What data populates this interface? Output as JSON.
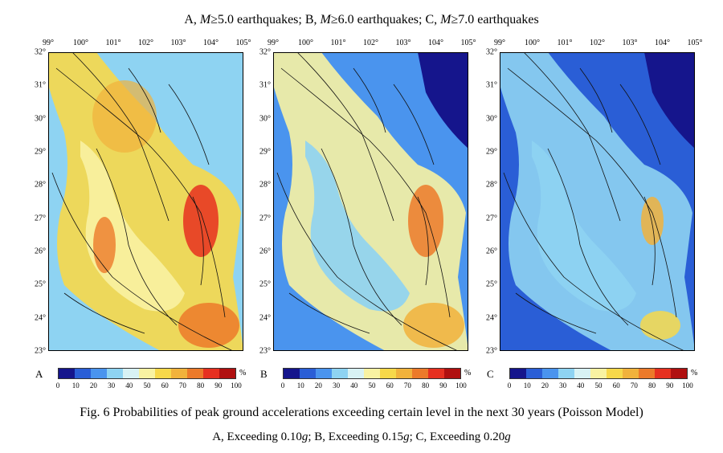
{
  "header": {
    "a_text": "A, ",
    "a_m": "M",
    "a_rest": "≥5.0 earthquakes; B, ",
    "b_m": "M",
    "b_rest": "≥6.0 earthquakes; C, ",
    "c_m": "M",
    "c_rest": "≥7.0 earthquakes"
  },
  "lon_labels": [
    "99°",
    "100°",
    "101°",
    "102°",
    "103°",
    "104°",
    "105°"
  ],
  "lat_labels": [
    "32°",
    "31°",
    "30°",
    "29°",
    "28°",
    "27°",
    "26°",
    "25°",
    "24°",
    "23°"
  ],
  "panels": [
    {
      "letter": "A",
      "intensity": "high"
    },
    {
      "letter": "B",
      "intensity": "medium"
    },
    {
      "letter": "C",
      "intensity": "low"
    }
  ],
  "colorbar": {
    "unit": "%",
    "ticks": [
      "0",
      "10",
      "20",
      "30",
      "40",
      "50",
      "60",
      "70",
      "80",
      "90",
      "100"
    ],
    "colors": [
      "#15158c",
      "#2a5ed6",
      "#4a94ee",
      "#8ed3f2",
      "#d8f2f4",
      "#f8f2a2",
      "#f7d84a",
      "#f1b23c",
      "#ec7a2a",
      "#e63020",
      "#b01010"
    ]
  },
  "caption": {
    "line1": "Fig. 6 Probabilities of peak ground accelerations exceeding certain level in the next 30 years (Poisson Model)",
    "line2_a": "A, Exceeding 0.10",
    "g1": "g",
    "line2_b": "; B, Exceeding 0.15",
    "g2": "g",
    "line2_c": "; C, Exceeding 0.20",
    "g3": "g"
  }
}
